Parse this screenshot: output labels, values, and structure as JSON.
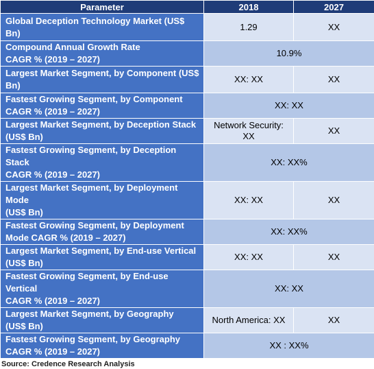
{
  "header": {
    "col_parameter": "Parameter",
    "col_2018": "2018",
    "col_2027": "2027"
  },
  "rows": [
    {
      "parameter": "Global Deception Technology Market (US$ Bn)",
      "v2018": "1.29",
      "v2027": "XX"
    },
    {
      "parameter": "Compound Annual Growth Rate\nCAGR % (2019 – 2027)",
      "merged": "10.9%"
    },
    {
      "parameter": "Largest Market Segment, by Component (US$\nBn)",
      "v2018": "XX: XX",
      "v2027": "XX"
    },
    {
      "parameter": "Fastest Growing Segment, by Component\nCAGR % (2019 – 2027)",
      "merged": "XX: XX"
    },
    {
      "parameter": "Largest Market Segment, by Deception Stack\n(US$ Bn)",
      "v2018": "Network Security:\nXX",
      "v2027": "XX"
    },
    {
      "parameter": "Fastest Growing Segment, by Deception Stack\nCAGR % (2019 – 2027)",
      "merged": "XX: XX%"
    },
    {
      "parameter": "Largest Market Segment, by Deployment\nMode\n(US$ Bn)",
      "v2018": "XX: XX",
      "v2027": "XX"
    },
    {
      "parameter": "Fastest Growing Segment, by Deployment\nMode CAGR % (2019 – 2027)",
      "merged": "XX: XX%"
    },
    {
      "parameter": "Largest Market Segment, by End-use Vertical\n(US$ Bn)",
      "v2018": "XX: XX",
      "v2027": "XX"
    },
    {
      "parameter": "Fastest Growing Segment, by End-use Vertical\nCAGR % (2019 – 2027)",
      "merged": "XX: XX"
    },
    {
      "parameter": "Largest Market Segment, by Geography\n(US$ Bn)",
      "v2018": "North America: XX",
      "v2027": "XX"
    },
    {
      "parameter": "Fastest Growing Segment, by Geography\nCAGR % (2019 – 2027)",
      "merged": "XX : XX%"
    }
  ],
  "source": "Source: Credence Research Analysis",
  "colors": {
    "header_bg": "#1f3c78",
    "parameter_bg": "#4472c4",
    "value_bg": "#b4c7e7",
    "value_alt_bg": "#dae3f3"
  }
}
